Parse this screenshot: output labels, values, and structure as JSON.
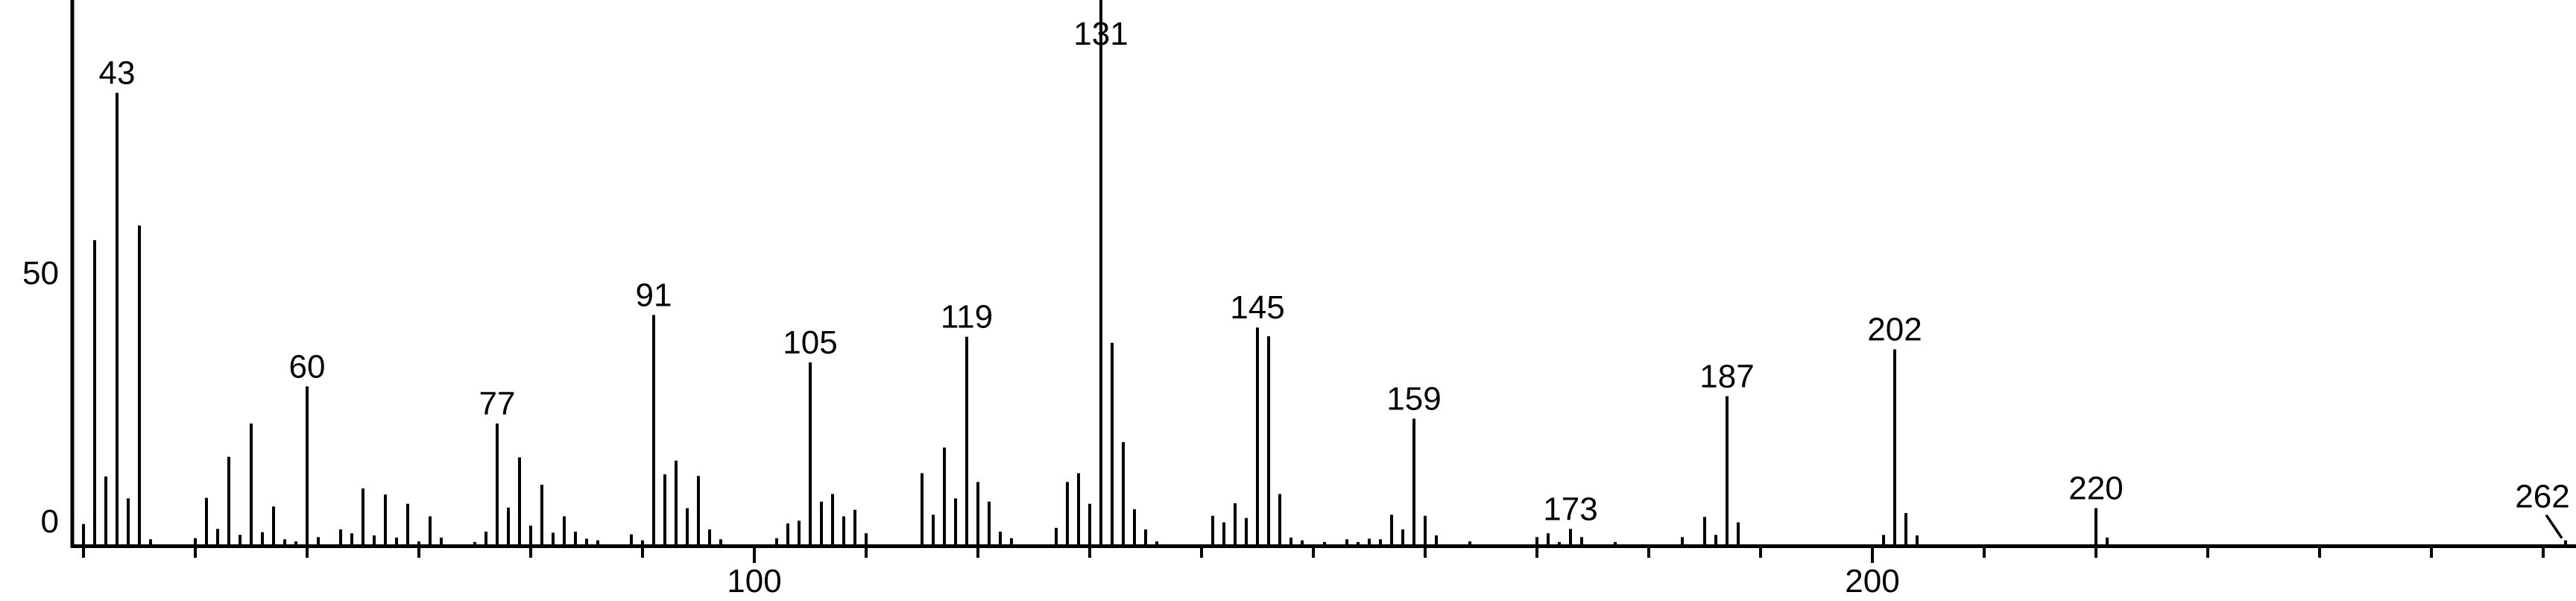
{
  "figure": {
    "background_color": "#ffffff",
    "line_color": "#000000",
    "y_axis_labels": [
      {
        "value": 50,
        "text": "50"
      },
      {
        "value": 0,
        "text": "0"
      }
    ],
    "x_axis_labels": [
      {
        "value": 100,
        "text": "100"
      },
      {
        "value": 200,
        "text": "200"
      }
    ]
  },
  "chart_data": {
    "type": "bar",
    "subtype": "mass_spectrum_stick_plot",
    "title": "",
    "xlabel": "",
    "ylabel": "",
    "xlim": [
      39,
      263
    ],
    "ylim": [
      0,
      100
    ],
    "grid": false,
    "legend": false,
    "y_ticks": [
      0,
      50
    ],
    "x_ticks_labeled": [
      100,
      200
    ],
    "x_ticks_minor": {
      "start": 40,
      "end": 260,
      "step": 10
    },
    "series": [
      {
        "name": "relative intensity (% of base peak)",
        "points": [
          [
            40,
            4
          ],
          [
            41,
            56
          ],
          [
            42,
            12.7
          ],
          [
            43,
            83
          ],
          [
            44,
            8.7
          ],
          [
            45,
            58.7
          ],
          [
            46,
            1.2
          ],
          [
            50,
            1.4
          ],
          [
            51,
            8.8
          ],
          [
            52,
            3.1
          ],
          [
            53,
            16.3
          ],
          [
            54,
            2
          ],
          [
            55,
            22.4
          ],
          [
            56,
            2.5
          ],
          [
            57,
            7.2
          ],
          [
            58,
            1.2
          ],
          [
            59,
            0.8
          ],
          [
            60,
            29.2
          ],
          [
            61,
            1.6
          ],
          [
            63,
            3
          ],
          [
            64,
            2.3
          ],
          [
            65,
            10.5
          ],
          [
            66,
            1.9
          ],
          [
            67,
            9.4
          ],
          [
            68,
            1.5
          ],
          [
            69,
            7.7
          ],
          [
            70,
            0.8
          ],
          [
            71,
            5.4
          ],
          [
            72,
            1.5
          ],
          [
            75,
            0.7
          ],
          [
            76,
            2.6
          ],
          [
            77,
            22.4
          ],
          [
            78,
            7
          ],
          [
            79,
            16.2
          ],
          [
            80,
            3.7
          ],
          [
            81,
            11.2
          ],
          [
            82,
            2.4
          ],
          [
            83,
            5.4
          ],
          [
            84,
            2.6
          ],
          [
            85,
            1.3
          ],
          [
            86,
            1
          ],
          [
            89,
            2.1
          ],
          [
            90,
            1
          ],
          [
            91,
            42.3
          ],
          [
            92,
            13.1
          ],
          [
            93,
            15.6
          ],
          [
            94,
            6.9
          ],
          [
            95,
            12.8
          ],
          [
            96,
            3
          ],
          [
            97,
            1.2
          ],
          [
            102,
            1.4
          ],
          [
            103,
            4.1
          ],
          [
            104,
            4.6
          ],
          [
            105,
            33.6
          ],
          [
            106,
            8.1
          ],
          [
            107,
            9.5
          ],
          [
            108,
            5.4
          ],
          [
            109,
            6.6
          ],
          [
            110,
            2.3
          ],
          [
            115,
            13.3
          ],
          [
            116,
            5.7
          ],
          [
            117,
            18
          ],
          [
            118,
            8.7
          ],
          [
            119,
            38.3
          ],
          [
            120,
            11.7
          ],
          [
            121,
            8.1
          ],
          [
            122,
            2.6
          ],
          [
            123,
            1.4
          ],
          [
            127,
            3.3
          ],
          [
            128,
            11.7
          ],
          [
            129,
            13.3
          ],
          [
            130,
            7.7
          ],
          [
            131,
            100
          ],
          [
            132,
            37.2
          ],
          [
            133,
            19
          ],
          [
            134,
            6.7
          ],
          [
            135,
            3
          ],
          [
            136,
            0.8
          ],
          [
            141,
            5.5
          ],
          [
            142,
            4.3
          ],
          [
            143,
            7.8
          ],
          [
            144,
            5.1
          ],
          [
            145,
            40
          ],
          [
            146,
            38.4
          ],
          [
            147,
            9.5
          ],
          [
            148,
            1.5
          ],
          [
            149,
            1
          ],
          [
            151,
            0.7
          ],
          [
            153,
            1.2
          ],
          [
            154,
            0.7
          ],
          [
            155,
            1.3
          ],
          [
            156,
            1.2
          ],
          [
            157,
            5.7
          ],
          [
            158,
            3
          ],
          [
            159,
            23.3
          ],
          [
            160,
            5.5
          ],
          [
            161,
            1.9
          ],
          [
            164,
            0.8
          ],
          [
            170,
            1.6
          ],
          [
            171,
            2.3
          ],
          [
            172,
            0.7
          ],
          [
            173,
            3.1
          ],
          [
            174,
            1.6
          ],
          [
            177,
            0.7
          ],
          [
            183,
            1.6
          ],
          [
            185,
            5.3
          ],
          [
            186,
            2
          ],
          [
            187,
            27.4
          ],
          [
            188,
            4.3
          ],
          [
            201,
            2
          ],
          [
            202,
            36
          ],
          [
            203,
            6
          ],
          [
            204,
            1.9
          ],
          [
            220,
            6.9
          ],
          [
            221,
            1.5
          ],
          [
            262,
            1
          ]
        ]
      }
    ],
    "peak_labels": [
      {
        "mz": 43,
        "text": "43"
      },
      {
        "mz": 60,
        "text": "60"
      },
      {
        "mz": 77,
        "text": "77"
      },
      {
        "mz": 91,
        "text": "91"
      },
      {
        "mz": 105,
        "text": "105"
      },
      {
        "mz": 119,
        "text": "119"
      },
      {
        "mz": 131,
        "text": "131"
      },
      {
        "mz": 145,
        "text": "145"
      },
      {
        "mz": 159,
        "text": "159"
      },
      {
        "mz": 173,
        "text": "173"
      },
      {
        "mz": 187,
        "text": "187"
      },
      {
        "mz": 202,
        "text": "202"
      },
      {
        "mz": 220,
        "text": "220"
      },
      {
        "mz": 262,
        "text": "262",
        "callout": true,
        "dx": -31
      }
    ]
  }
}
